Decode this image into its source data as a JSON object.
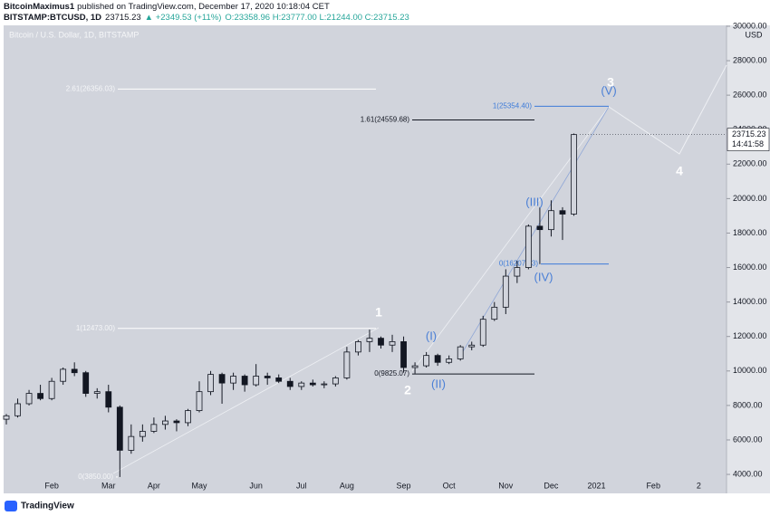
{
  "header": {
    "author": "BitcoinMaximus1",
    "published": "published on TradingView.com, December 17, 2020 10:18:04 CET",
    "symbol": "BITSTAMP:BTCUSD, 1D",
    "last": "23715.23",
    "change": "▲ +2349.53 (+11%)",
    "ohlc": "O:23358.96 H:23777.00 L:21244.00 C:23715.23"
  },
  "footer": {
    "brand": "TradingView"
  },
  "chart_data": {
    "type": "candlestick",
    "title": "Bitcoin / U.S. Dollar, 1D, BITSTAMP",
    "y_unit": "USD",
    "categories": [
      null,
      null,
      null,
      null,
      "Feb",
      null,
      null,
      null,
      null,
      "Mar",
      null,
      null,
      null,
      "Apr",
      null,
      null,
      null,
      "May",
      null,
      null,
      null,
      null,
      "Jun",
      null,
      null,
      null,
      "Jul",
      null,
      null,
      null,
      "Aug",
      null,
      null,
      null,
      null,
      "Sep",
      null,
      null,
      null,
      "Oct",
      null,
      null,
      null,
      null,
      "Nov",
      null,
      null,
      null,
      "Dec",
      null,
      null,
      null,
      "2021",
      null,
      null,
      null,
      null,
      "Feb",
      null,
      null,
      null,
      "2",
      null,
      null
    ],
    "open": [
      7200,
      7400,
      8100,
      8700,
      8400,
      9400,
      10100,
      9900,
      8700,
      8800,
      7900,
      5400,
      6200,
      6500,
      6900,
      7100,
      7000,
      7700,
      8800,
      9800,
      9300,
      9700,
      9200,
      9700,
      9600,
      9400,
      9100,
      9300,
      9200,
      9250,
      9600,
      11100,
      11700,
      11900,
      11500,
      11700,
      10200,
      10300,
      10900,
      10500,
      10700,
      11400,
      11500,
      13000,
      13700,
      15500,
      16000,
      18400,
      18200,
      19300,
      19100,
      null,
      null,
      null,
      null,
      null,
      null,
      null,
      null,
      null,
      null,
      null,
      null,
      null
    ],
    "high": [
      7500,
      8400,
      8900,
      9200,
      9600,
      10200,
      10500,
      10000,
      9000,
      9200,
      8000,
      6900,
      6900,
      7300,
      7400,
      7200,
      7800,
      9400,
      10000,
      9900,
      9900,
      9800,
      10400,
      9900,
      9800,
      9600,
      9400,
      9500,
      9400,
      9700,
      11400,
      11800,
      12400,
      12000,
      12100,
      12000,
      10500,
      11100,
      11000,
      10900,
      11500,
      11700,
      13200,
      14000,
      15900,
      16400,
      18500,
      19500,
      19900,
      19500,
      23777,
      null,
      null,
      null,
      null,
      null,
      null,
      null,
      null,
      null,
      null,
      null,
      null,
      null
    ],
    "low": [
      6900,
      7300,
      8000,
      8300,
      8300,
      9200,
      9700,
      8500,
      8400,
      7600,
      3850,
      5200,
      5900,
      6400,
      6600,
      6500,
      6800,
      7600,
      8600,
      8100,
      8900,
      8800,
      9100,
      9200,
      9300,
      8900,
      8900,
      9100,
      9000,
      9100,
      9500,
      10900,
      11100,
      11300,
      11100,
      9900,
      9850,
      10200,
      10300,
      10400,
      10600,
      11200,
      11400,
      12900,
      13300,
      15100,
      15900,
      16200,
      17800,
      17600,
      19000,
      null,
      null,
      null,
      null,
      null,
      null,
      null,
      null,
      null,
      null,
      null,
      null,
      null
    ],
    "close": [
      7400,
      8100,
      8700,
      8400,
      9400,
      10100,
      9900,
      8700,
      8800,
      7900,
      5400,
      6200,
      6500,
      6900,
      7100,
      7000,
      7700,
      8800,
      9800,
      9300,
      9700,
      9200,
      9700,
      9600,
      9400,
      9100,
      9300,
      9200,
      9250,
      9600,
      11100,
      11700,
      11900,
      11500,
      11700,
      10200,
      10300,
      10900,
      10500,
      10700,
      11400,
      11500,
      13000,
      13700,
      15500,
      16000,
      18400,
      18200,
      19300,
      19100,
      23715,
      null,
      null,
      null,
      null,
      null,
      null,
      null,
      null,
      null,
      null,
      null,
      null,
      null
    ],
    "ylim": [
      2900,
      30050
    ],
    "yticks": [
      {
        "value": 4000,
        "label": "4000.00"
      },
      {
        "value": 6000,
        "label": "6000.00"
      },
      {
        "value": 8000,
        "label": "8000.00"
      },
      {
        "value": 10000,
        "label": "10000.00"
      },
      {
        "value": 12000,
        "label": "12000.00"
      },
      {
        "value": 14000,
        "label": "14000.00"
      },
      {
        "value": 16000,
        "label": "16000.00"
      },
      {
        "value": 18000,
        "label": "18000.00"
      },
      {
        "value": 20000,
        "label": "20000.00"
      },
      {
        "value": 22000,
        "label": "22000.00"
      },
      {
        "value": 24000,
        "label": "24000.00"
      },
      {
        "value": 26000,
        "label": "26000.00"
      },
      {
        "value": 28000,
        "label": "28000.00"
      },
      {
        "value": 30000,
        "label": "30000.00"
      }
    ],
    "last_price": {
      "value": 23715.23,
      "label": "23715.23"
    },
    "countdown": "14:41:58",
    "candle_color": "#131722",
    "fib_levels": [
      {
        "value": 26356.03,
        "label": "2.61(26356.03)",
        "color": "#ffffff"
      },
      {
        "value": 24559.68,
        "label": "1.61(24559.68)",
        "color": "#131722"
      },
      {
        "value": 25354.4,
        "label": "1(25354.40)",
        "color": "#3d7bd9"
      },
      {
        "value": 16207.73,
        "label": "0(16207.73)",
        "color": "#3d7bd9"
      },
      {
        "value": 12473.0,
        "label": "1(12473.00)",
        "color": "#ffffff"
      },
      {
        "value": 9825.07,
        "label": "0(9825.07)",
        "color": "#131722"
      },
      {
        "value": 3850.0,
        "label": "0(3850.00)",
        "color": "#ffffff"
      }
    ],
    "wave_labels": [
      "1",
      "2",
      "3",
      "4"
    ],
    "subwave_labels": [
      "(I)",
      "(II)",
      "(III)",
      "(IV)",
      "(V)"
    ],
    "wave_color": "#ffffff",
    "subwave_color": "#4a7fd6"
  }
}
